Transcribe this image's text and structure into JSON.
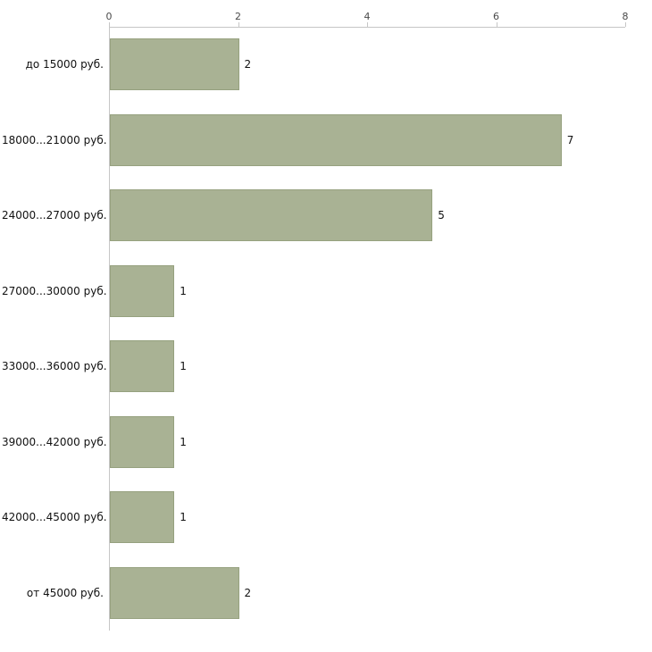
{
  "chart_data": {
    "type": "bar",
    "orientation": "horizontal",
    "title": "",
    "xlabel": "",
    "ylabel": "",
    "categories": [
      "до 15000 руб.",
      "18000...21000 руб.",
      "24000...27000 руб.",
      "27000...30000 руб.",
      "33000...36000 руб.",
      "39000...42000 руб.",
      "42000...45000 руб.",
      "от 45000 руб."
    ],
    "values": [
      2,
      7,
      5,
      1,
      1,
      1,
      1,
      2
    ],
    "value_labels": [
      "2",
      "7",
      "5",
      "1",
      "1",
      "1",
      "1",
      "2"
    ],
    "x_ticks": [
      0,
      2,
      4,
      6,
      8
    ],
    "x_tick_labels": [
      "0",
      "2",
      "4",
      "6",
      "8"
    ],
    "xlim": [
      0,
      8
    ],
    "grid": false,
    "legend": "none",
    "bar_color": "#a9b294",
    "bar_border_color": "#96a17f",
    "axis_color": "#c6c6c6",
    "background_color": "#ffffff"
  }
}
